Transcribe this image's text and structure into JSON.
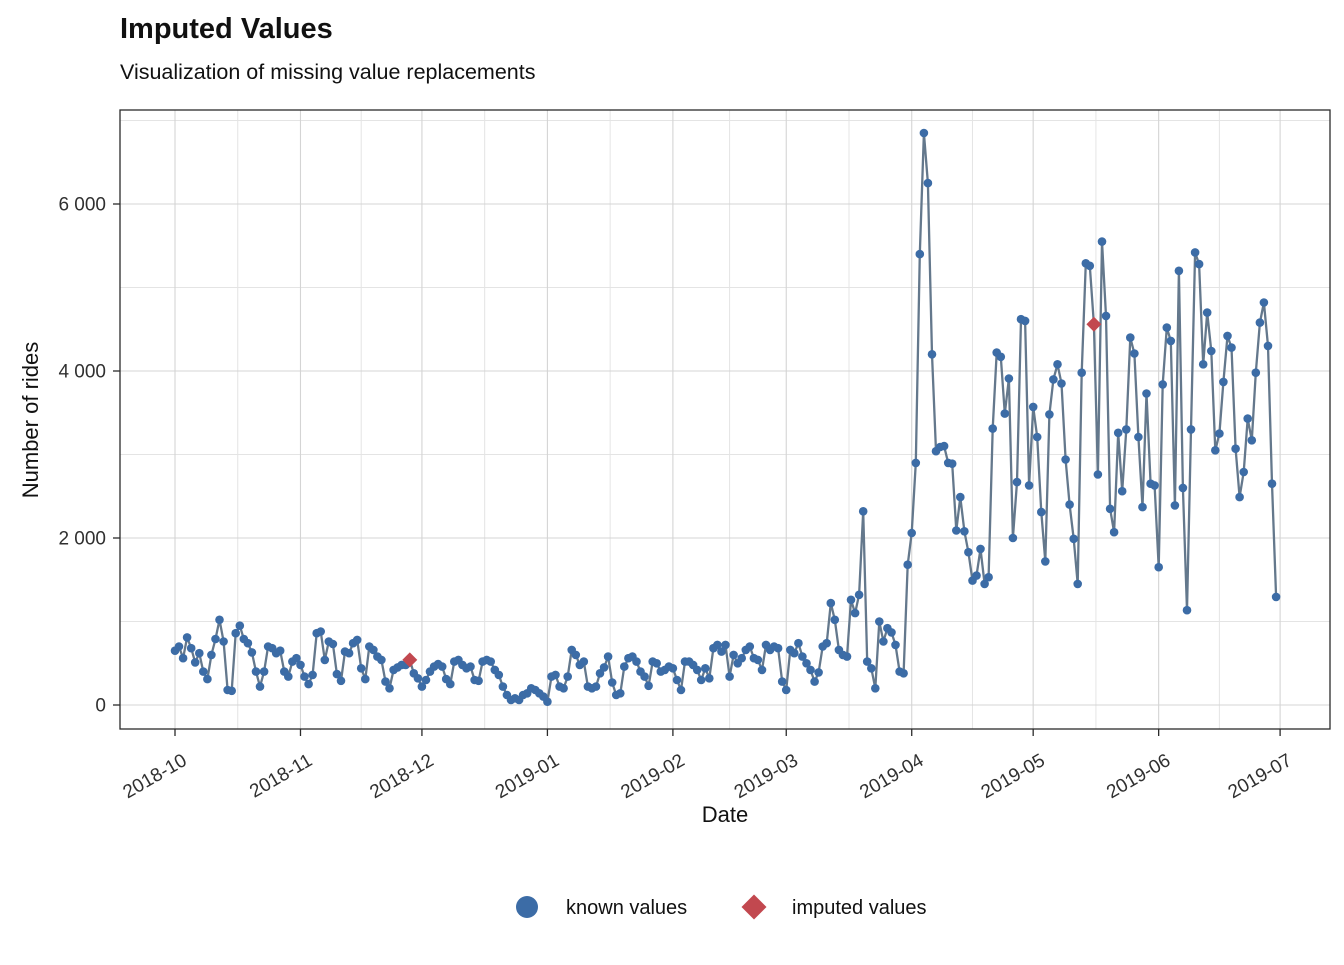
{
  "header": {
    "title": "Imputed Values",
    "subtitle": "Visualization of missing value replacements"
  },
  "legend": {
    "known_label": "known values",
    "imputed_label": "imputed values"
  },
  "colors": {
    "known_point": "#3C6CA6",
    "imputed_point": "#C2484F",
    "line": "#64788C",
    "grid_major": "#D4D4D4",
    "grid_minor": "#E4E4E4",
    "panel_border": "#2B2B2B",
    "tick_text": "#303030"
  },
  "chart_data": {
    "type": "line",
    "title": "Imputed Values",
    "subtitle": "Visualization of missing value replacements",
    "xlabel": "Date",
    "ylabel": "Number of rides",
    "start_date": "2018-10-01",
    "end_date": "2019-06-30",
    "n_points": 273,
    "ylim": [
      -300,
      7130
    ],
    "y_major_ticks": [
      {
        "value": 0,
        "label": "0"
      },
      {
        "value": 2000,
        "label": "2 000"
      },
      {
        "value": 4000,
        "label": "4 000"
      },
      {
        "value": 6000,
        "label": "6 000"
      }
    ],
    "y_minor_values": [
      1000,
      3000,
      5000,
      7000
    ],
    "x_ticks": [
      {
        "day": 0,
        "label": "2018-10"
      },
      {
        "day": 31,
        "label": "2018-11"
      },
      {
        "day": 61,
        "label": "2018-12"
      },
      {
        "day": 92,
        "label": "2019-01"
      },
      {
        "day": 123,
        "label": "2019-02"
      },
      {
        "day": 151,
        "label": "2019-03"
      },
      {
        "day": 182,
        "label": "2019-04"
      },
      {
        "day": 212,
        "label": "2019-05"
      },
      {
        "day": 243,
        "label": "2019-06"
      },
      {
        "day": 273,
        "label": "2019-07"
      }
    ],
    "x_minor_days": [
      15.5,
      46,
      76.5,
      107.5,
      137,
      166.5,
      197,
      227.5,
      258
    ],
    "values": [
      650,
      700,
      560,
      810,
      680,
      510,
      620,
      400,
      310,
      600,
      790,
      1020,
      760,
      180,
      170,
      860,
      950,
      790,
      740,
      630,
      400,
      220,
      400,
      700,
      680,
      620,
      650,
      400,
      340,
      520,
      560,
      480,
      340,
      250,
      360,
      860,
      880,
      540,
      760,
      730,
      370,
      290,
      640,
      620,
      740,
      780,
      440,
      310,
      700,
      660,
      580,
      540,
      280,
      200,
      420,
      450,
      480,
      480,
      540,
      380,
      320,
      220,
      300,
      400,
      460,
      490,
      460,
      310,
      250,
      520,
      540,
      480,
      440,
      460,
      300,
      290,
      520,
      540,
      520,
      420,
      360,
      220,
      120,
      60,
      80,
      60,
      120,
      140,
      200,
      180,
      140,
      100,
      40,
      340,
      360,
      220,
      200,
      340,
      660,
      600,
      480,
      520,
      220,
      200,
      220,
      380,
      450,
      580,
      270,
      120,
      140,
      460,
      560,
      580,
      520,
      400,
      340,
      230,
      520,
      500,
      400,
      420,
      460,
      440,
      300,
      180,
      520,
      520,
      480,
      420,
      300,
      440,
      320,
      680,
      720,
      640,
      720,
      340,
      600,
      500,
      560,
      660,
      700,
      560,
      540,
      420,
      720,
      660,
      700,
      680,
      280,
      180,
      660,
      620,
      740,
      580,
      500,
      420,
      280,
      390,
      700,
      740,
      1220,
      1020,
      660,
      600,
      580,
      1260,
      1100,
      1320,
      2320,
      520,
      440,
      200,
      1000,
      760,
      920,
      870,
      720,
      400,
      380,
      1680,
      2060,
      2900,
      5400,
      6850,
      6250,
      4200,
      3040,
      3090,
      3100,
      2900,
      2890,
      2090,
      2490,
      2080,
      1830,
      1490,
      1550,
      1870,
      1450,
      1530,
      3310,
      4220,
      4170,
      3490,
      3910,
      2000,
      2670,
      4620,
      4600,
      2630,
      3570,
      3210,
      2310,
      1720,
      3480,
      3900,
      4080,
      3850,
      2940,
      2400,
      1990,
      1450,
      3980,
      5290,
      5260,
      4560,
      2760,
      5550,
      4660,
      2350,
      2070,
      3260,
      2560,
      3300,
      4400,
      4210,
      3210,
      2370,
      3730,
      2650,
      2630,
      1650,
      3840,
      4520,
      4360,
      2390,
      5200,
      2600,
      1135,
      3300,
      5420,
      5280,
      4080,
      4700,
      4240,
      3050,
      3250,
      3870,
      4420,
      4280,
      3070,
      2490,
      2790,
      3430,
      3170,
      3980,
      4580,
      4820,
      4300,
      2650,
      1295
    ],
    "imputed_points": [
      {
        "index": 58,
        "date": "2018-11-28",
        "value": 540
      },
      {
        "index": 227,
        "date": "2019-05-16",
        "value": 4560
      }
    ],
    "legend_entries": [
      "known values",
      "imputed values"
    ],
    "legend_position": "bottom",
    "grid": true
  }
}
